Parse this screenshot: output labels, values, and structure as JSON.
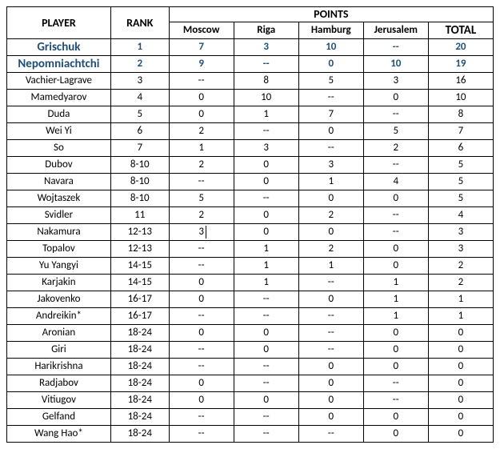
{
  "headers": {
    "player": "PLAYER",
    "rank": "RANK",
    "points": "POINTS",
    "total": "TOTAL",
    "cities": [
      "Moscow",
      "Riga",
      "Hamburg",
      "Jerusalem"
    ]
  },
  "highlight_color": "#1f4e79",
  "border_color": "#000000",
  "background_color": "#ffffff",
  "font_family": "Calibri, Arial, sans-serif",
  "rows": [
    {
      "player": "Grischuk",
      "rank": "1",
      "moscow": "7",
      "riga": "3",
      "hamburg": "10",
      "jerusalem": "--",
      "total": "20",
      "highlight": true
    },
    {
      "player": "Nepomniachtchi",
      "rank": "2",
      "moscow": "9",
      "riga": "--",
      "hamburg": "0",
      "jerusalem": "10",
      "total": "19",
      "highlight": true
    },
    {
      "player": "Vachier-Lagrave",
      "rank": "3",
      "moscow": "--",
      "riga": "8",
      "hamburg": "5",
      "jerusalem": "3",
      "total": "16"
    },
    {
      "player": "Mamedyarov",
      "rank": "4",
      "moscow": "0",
      "riga": "10",
      "hamburg": "--",
      "jerusalem": "0",
      "total": "10"
    },
    {
      "player": "Duda",
      "rank": "5",
      "moscow": "0",
      "riga": "1",
      "hamburg": "7",
      "jerusalem": "--",
      "total": "8"
    },
    {
      "player": "Wei Yi",
      "rank": "6",
      "moscow": "2",
      "riga": "--",
      "hamburg": "0",
      "jerusalem": "5",
      "total": "7"
    },
    {
      "player": "So",
      "rank": "7",
      "moscow": "1",
      "riga": "3",
      "hamburg": "--",
      "jerusalem": "2",
      "total": "6"
    },
    {
      "player": "Dubov",
      "rank": "8-10",
      "moscow": "2",
      "riga": "0",
      "hamburg": "3",
      "jerusalem": "--",
      "total": "5"
    },
    {
      "player": "Navara",
      "rank": "8-10",
      "moscow": "--",
      "riga": "0",
      "hamburg": "1",
      "jerusalem": "4",
      "total": "5"
    },
    {
      "player": "Wojtaszek",
      "rank": "8-10",
      "moscow": "5",
      "riga": "--",
      "hamburg": "0",
      "jerusalem": "0",
      "total": "5"
    },
    {
      "player": "Svidler",
      "rank": "11",
      "moscow": "2",
      "riga": "0",
      "hamburg": "2",
      "jerusalem": "--",
      "total": "4"
    },
    {
      "player": "Nakamura",
      "rank": "12-13",
      "moscow": "3",
      "riga": "0",
      "hamburg": "0",
      "jerusalem": "--",
      "total": "3",
      "edit_cell": "moscow"
    },
    {
      "player": "Topalov",
      "rank": "12-13",
      "moscow": "--",
      "riga": "1",
      "hamburg": "2",
      "jerusalem": "0",
      "total": "3"
    },
    {
      "player": "Yu Yangyi",
      "rank": "14-15",
      "moscow": "--",
      "riga": "1",
      "hamburg": "1",
      "jerusalem": "0",
      "total": "2"
    },
    {
      "player": "Karjakin",
      "rank": "14-15",
      "moscow": "0",
      "riga": "1",
      "hamburg": "--",
      "jerusalem": "1",
      "total": "2"
    },
    {
      "player": "Jakovenko",
      "rank": "16-17",
      "moscow": "0",
      "riga": "--",
      "hamburg": "0",
      "jerusalem": "1",
      "total": "1"
    },
    {
      "player": "Andreikin*",
      "rank": "16-17",
      "moscow": "--",
      "riga": "--",
      "hamburg": "--",
      "jerusalem": "1",
      "total": "1"
    },
    {
      "player": "Aronian",
      "rank": "18-24",
      "moscow": "0",
      "riga": "0",
      "hamburg": "--",
      "jerusalem": "0",
      "total": "0"
    },
    {
      "player": "Giri",
      "rank": "18-24",
      "moscow": "--",
      "riga": "0",
      "hamburg": "--",
      "jerusalem": "0",
      "total": "0"
    },
    {
      "player": "Harikrishna",
      "rank": "18-24",
      "moscow": "--",
      "riga": "--",
      "hamburg": "0",
      "jerusalem": "0",
      "total": "0"
    },
    {
      "player": "Radjabov",
      "rank": "18-24",
      "moscow": "0",
      "riga": "--",
      "hamburg": "0",
      "jerusalem": "--",
      "total": "0"
    },
    {
      "player": "Vitiugov",
      "rank": "18-24",
      "moscow": "0",
      "riga": "0",
      "hamburg": "0",
      "jerusalem": "--",
      "total": "0"
    },
    {
      "player": "Gelfand",
      "rank": "18-24",
      "moscow": "--",
      "riga": "--",
      "hamburg": "0",
      "jerusalem": "0",
      "total": "0"
    },
    {
      "player": "Wang Hao*",
      "rank": "18-24",
      "moscow": "--",
      "riga": "--",
      "hamburg": "--",
      "jerusalem": "0",
      "total": "0"
    }
  ]
}
